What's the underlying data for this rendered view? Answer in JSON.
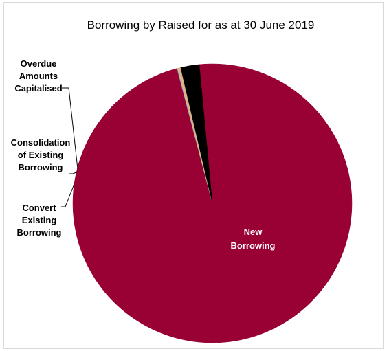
{
  "chart_data": {
    "type": "pie",
    "title": "Borrowing by Raised for as at 30 June 2019",
    "categories": [
      "New Borrowing",
      "Overdue Amounts Capitalised",
      "Consolidation of Existing Borrowing",
      "Convert Existing Borrowing"
    ],
    "values": [
      97.4,
      0.05,
      0.4,
      2.15
    ],
    "unit": "%",
    "colors": [
      "#990033",
      "#4a6fa5",
      "#d9b38c",
      "#000000"
    ],
    "start_angle_deg": 264.6,
    "legend": "none",
    "labels": {
      "new_borrowing": [
        "New",
        "Borrowing"
      ],
      "overdue": [
        "Overdue",
        "Amounts",
        "Capitalised"
      ],
      "consolidation": [
        "Consolidation",
        "of Existing",
        "Borrowing"
      ],
      "convert": [
        "Convert",
        "Existing",
        "Borrowing"
      ]
    }
  }
}
